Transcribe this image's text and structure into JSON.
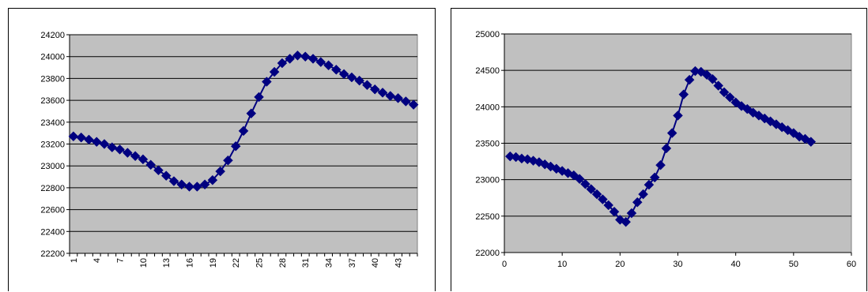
{
  "chart_data": [
    {
      "type": "line",
      "title": "",
      "xlabel": "",
      "ylabel": "",
      "x_axis": "category",
      "categories": [
        "1",
        "2",
        "3",
        "4",
        "5",
        "6",
        "7",
        "8",
        "9",
        "10",
        "11",
        "12",
        "13",
        "14",
        "15",
        "16",
        "17",
        "18",
        "19",
        "20",
        "21",
        "22",
        "23",
        "24",
        "25",
        "26",
        "27",
        "28",
        "29",
        "30",
        "31",
        "32",
        "33",
        "34",
        "35",
        "36",
        "37",
        "38",
        "39",
        "40",
        "41",
        "42",
        "43",
        "44",
        "45"
      ],
      "x_tick_labels": [
        "1",
        "4",
        "7",
        "10",
        "13",
        "16",
        "19",
        "22",
        "25",
        "28",
        "31",
        "34",
        "37",
        "40",
        "43"
      ],
      "y_ticks": [
        22200,
        22400,
        22600,
        22800,
        23000,
        23200,
        23400,
        23600,
        23800,
        24000,
        24200
      ],
      "ylim": [
        22200,
        24200
      ],
      "grid": "horizontal",
      "legend": "none",
      "plot_background": "#c0c0c0",
      "series_color": "#000080",
      "marker": "diamond",
      "series": [
        {
          "values": [
            23270,
            23260,
            23240,
            23220,
            23200,
            23170,
            23150,
            23120,
            23090,
            23060,
            23010,
            22960,
            22910,
            22860,
            22830,
            22810,
            22810,
            22830,
            22870,
            22950,
            23050,
            23180,
            23320,
            23480,
            23630,
            23770,
            23860,
            23940,
            23980,
            24010,
            24000,
            23980,
            23950,
            23920,
            23880,
            23840,
            23810,
            23780,
            23740,
            23700,
            23670,
            23640,
            23620,
            23590,
            23560
          ]
        }
      ]
    },
    {
      "type": "scatter",
      "title": "",
      "xlabel": "",
      "ylabel": "",
      "x_ticks": [
        0,
        10,
        20,
        30,
        40,
        50,
        60
      ],
      "xlim": [
        0,
        60
      ],
      "y_ticks": [
        22000,
        22500,
        23000,
        23500,
        24000,
        24500,
        25000
      ],
      "ylim": [
        22000,
        25000
      ],
      "grid": "horizontal",
      "legend": "none",
      "plot_background": "#c0c0c0",
      "series_color": "#000080",
      "marker": "diamond",
      "series": [
        {
          "x": [
            1,
            2,
            3,
            4,
            5,
            6,
            7,
            8,
            9,
            10,
            11,
            12,
            13,
            14,
            15,
            16,
            17,
            18,
            19,
            20,
            21,
            22,
            23,
            24,
            25,
            26,
            27,
            28,
            29,
            30,
            31,
            32,
            33,
            34,
            35,
            36,
            37,
            38,
            39,
            40,
            41,
            42,
            43,
            44,
            45,
            46,
            47,
            48,
            49,
            50,
            51,
            52,
            53
          ],
          "y": [
            23320,
            23310,
            23290,
            23280,
            23260,
            23240,
            23210,
            23180,
            23150,
            23120,
            23090,
            23060,
            23010,
            22940,
            22870,
            22800,
            22730,
            22650,
            22560,
            22450,
            22420,
            22540,
            22690,
            22800,
            22930,
            23030,
            23200,
            23430,
            23640,
            23880,
            24170,
            24370,
            24490,
            24480,
            24440,
            24380,
            24290,
            24200,
            24130,
            24060,
            24010,
            23970,
            23920,
            23880,
            23840,
            23800,
            23760,
            23720,
            23680,
            23640,
            23590,
            23560,
            23520
          ]
        }
      ]
    }
  ]
}
